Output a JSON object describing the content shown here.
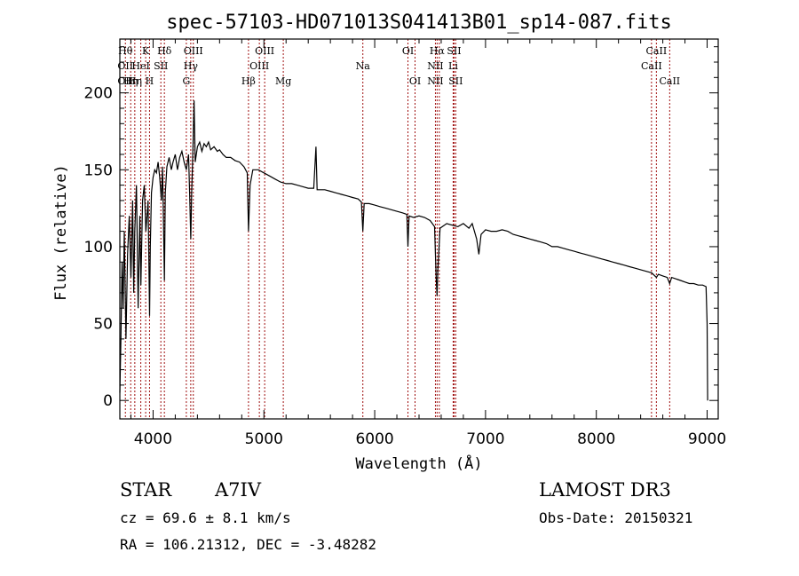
{
  "chart_data": {
    "type": "line",
    "title": "spec-57103-HD071013S041413B01_sp14-087.fits",
    "xlabel": "Wavelength (Å)",
    "ylabel": "Flux (relative)",
    "xlim": [
      3700,
      9100
    ],
    "ylim": [
      -12,
      235
    ],
    "xticks": [
      4000,
      5000,
      6000,
      7000,
      8000,
      9000
    ],
    "yticks": [
      0,
      50,
      100,
      150,
      200
    ],
    "line_color": "#000000",
    "marker_color": "#a01010",
    "series": [
      {
        "name": "spectrum",
        "points": [
          [
            3700,
            5
          ],
          [
            3710,
            40
          ],
          [
            3720,
            90
          ],
          [
            3730,
            60
          ],
          [
            3740,
            110
          ],
          [
            3755,
            40
          ],
          [
            3770,
            95
          ],
          [
            3785,
            120
          ],
          [
            3800,
            80
          ],
          [
            3815,
            130
          ],
          [
            3825,
            70
          ],
          [
            3835,
            110
          ],
          [
            3850,
            140
          ],
          [
            3865,
            60
          ],
          [
            3880,
            120
          ],
          [
            3890,
            75
          ],
          [
            3905,
            130
          ],
          [
            3920,
            140
          ],
          [
            3935,
            110
          ],
          [
            3945,
            120
          ],
          [
            3955,
            130
          ],
          [
            3968,
            55
          ],
          [
            3975,
            100
          ],
          [
            3985,
            135
          ],
          [
            4000,
            145
          ],
          [
            4015,
            150
          ],
          [
            4030,
            148
          ],
          [
            4045,
            155
          ],
          [
            4060,
            145
          ],
          [
            4075,
            130
          ],
          [
            4085,
            152
          ],
          [
            4095,
            110
          ],
          [
            4102,
            78
          ],
          [
            4110,
            135
          ],
          [
            4125,
            152
          ],
          [
            4145,
            158
          ],
          [
            4165,
            150
          ],
          [
            4180,
            155
          ],
          [
            4200,
            160
          ],
          [
            4220,
            150
          ],
          [
            4240,
            158
          ],
          [
            4260,
            162
          ],
          [
            4280,
            155
          ],
          [
            4300,
            150
          ],
          [
            4320,
            160
          ],
          [
            4330,
            135
          ],
          [
            4340,
            105
          ],
          [
            4348,
            135
          ],
          [
            4360,
            165
          ],
          [
            4370,
            195
          ],
          [
            4380,
            155
          ],
          [
            4400,
            165
          ],
          [
            4420,
            168
          ],
          [
            4440,
            162
          ],
          [
            4460,
            167
          ],
          [
            4480,
            165
          ],
          [
            4500,
            168
          ],
          [
            4520,
            163
          ],
          [
            4550,
            165
          ],
          [
            4580,
            162
          ],
          [
            4600,
            163
          ],
          [
            4630,
            160
          ],
          [
            4660,
            158
          ],
          [
            4700,
            158
          ],
          [
            4740,
            156
          ],
          [
            4780,
            155
          ],
          [
            4820,
            152
          ],
          [
            4850,
            148
          ],
          [
            4861,
            110
          ],
          [
            4875,
            140
          ],
          [
            4900,
            150
          ],
          [
            4950,
            150
          ],
          [
            5000,
            148
          ],
          [
            5050,
            146
          ],
          [
            5100,
            144
          ],
          [
            5150,
            142
          ],
          [
            5200,
            141
          ],
          [
            5250,
            141
          ],
          [
            5300,
            140
          ],
          [
            5350,
            139
          ],
          [
            5400,
            138
          ],
          [
            5450,
            138
          ],
          [
            5470,
            165
          ],
          [
            5480,
            137
          ],
          [
            5550,
            137
          ],
          [
            5600,
            136
          ],
          [
            5650,
            135
          ],
          [
            5700,
            134
          ],
          [
            5750,
            133
          ],
          [
            5800,
            132
          ],
          [
            5850,
            131
          ],
          [
            5880,
            129
          ],
          [
            5893,
            110
          ],
          [
            5905,
            128
          ],
          [
            5950,
            128
          ],
          [
            6000,
            127
          ],
          [
            6050,
            126
          ],
          [
            6100,
            125
          ],
          [
            6150,
            124
          ],
          [
            6200,
            123
          ],
          [
            6250,
            122
          ],
          [
            6290,
            121
          ],
          [
            6300,
            100
          ],
          [
            6310,
            120
          ],
          [
            6350,
            119
          ],
          [
            6400,
            120
          ],
          [
            6450,
            119
          ],
          [
            6500,
            117
          ],
          [
            6540,
            113
          ],
          [
            6555,
            80
          ],
          [
            6563,
            68
          ],
          [
            6570,
            85
          ],
          [
            6590,
            112
          ],
          [
            6650,
            115
          ],
          [
            6700,
            114
          ],
          [
            6750,
            113
          ],
          [
            6800,
            115
          ],
          [
            6850,
            112
          ],
          [
            6880,
            115
          ],
          [
            6920,
            105
          ],
          [
            6940,
            95
          ],
          [
            6960,
            108
          ],
          [
            7000,
            111
          ],
          [
            7050,
            110
          ],
          [
            7100,
            110
          ],
          [
            7150,
            111
          ],
          [
            7200,
            110
          ],
          [
            7250,
            108
          ],
          [
            7300,
            107
          ],
          [
            7350,
            106
          ],
          [
            7400,
            105
          ],
          [
            7450,
            104
          ],
          [
            7500,
            103
          ],
          [
            7550,
            102
          ],
          [
            7600,
            100
          ],
          [
            7650,
            100
          ],
          [
            7700,
            99
          ],
          [
            7750,
            98
          ],
          [
            7800,
            97
          ],
          [
            7850,
            96
          ],
          [
            7900,
            95
          ],
          [
            7950,
            94
          ],
          [
            8000,
            93
          ],
          [
            8050,
            92
          ],
          [
            8100,
            91
          ],
          [
            8150,
            90
          ],
          [
            8200,
            89
          ],
          [
            8250,
            88
          ],
          [
            8300,
            87
          ],
          [
            8350,
            86
          ],
          [
            8400,
            85
          ],
          [
            8450,
            84
          ],
          [
            8500,
            83
          ],
          [
            8542,
            80
          ],
          [
            8560,
            82
          ],
          [
            8600,
            81
          ],
          [
            8640,
            80
          ],
          [
            8662,
            76
          ],
          [
            8680,
            80
          ],
          [
            8720,
            79
          ],
          [
            8760,
            78
          ],
          [
            8800,
            77
          ],
          [
            8840,
            76
          ],
          [
            8880,
            76
          ],
          [
            8920,
            75
          ],
          [
            8960,
            75
          ],
          [
            8990,
            74
          ],
          [
            9000,
            50
          ],
          [
            9005,
            0
          ]
        ]
      }
    ],
    "line_markers": [
      {
        "wl": 3750,
        "labels": [
          [
            "Hθ",
            1
          ],
          [
            "OII",
            2
          ],
          [
            "OII",
            3
          ]
        ]
      },
      {
        "wl": 3798,
        "labels": [
          [
            "Hη",
            3
          ]
        ]
      },
      {
        "wl": 3835,
        "labels": [
          [
            "Hη",
            3
          ]
        ]
      },
      {
        "wl": 3889,
        "labels": [
          [
            "HeI",
            2
          ]
        ]
      },
      {
        "wl": 3933,
        "labels": [
          [
            "K",
            1
          ]
        ]
      },
      {
        "wl": 3968,
        "labels": [
          [
            "H",
            3
          ]
        ]
      },
      {
        "wl": 4070,
        "labels": [
          [
            "SII",
            2
          ]
        ]
      },
      {
        "wl": 4102,
        "labels": [
          [
            "Hδ",
            1
          ]
        ]
      },
      {
        "wl": 4300,
        "labels": [
          [
            "G",
            3
          ]
        ]
      },
      {
        "wl": 4340,
        "labels": [
          [
            "Hγ",
            2
          ]
        ]
      },
      {
        "wl": 4363,
        "labels": [
          [
            "OIII",
            1
          ]
        ]
      },
      {
        "wl": 4861,
        "labels": [
          [
            "Hβ",
            3
          ]
        ]
      },
      {
        "wl": 4959,
        "labels": [
          [
            "OIII",
            2
          ]
        ]
      },
      {
        "wl": 5007,
        "labels": [
          [
            "OIII",
            1
          ]
        ]
      },
      {
        "wl": 5175,
        "labels": [
          [
            "Mg",
            3
          ]
        ]
      },
      {
        "wl": 5893,
        "labels": [
          [
            "Na",
            2
          ]
        ]
      },
      {
        "wl": 6300,
        "labels": [
          [
            "OI",
            1
          ]
        ]
      },
      {
        "wl": 6364,
        "labels": [
          [
            "OI",
            3
          ]
        ]
      },
      {
        "wl": 6548,
        "labels": [
          [
            "NII",
            2
          ],
          [
            "NII",
            3
          ]
        ]
      },
      {
        "wl": 6563,
        "labels": [
          [
            "Hα",
            1
          ]
        ]
      },
      {
        "wl": 6583,
        "labels": []
      },
      {
        "wl": 6708,
        "labels": [
          [
            "Li",
            2
          ]
        ]
      },
      {
        "wl": 6716,
        "labels": [
          [
            "SII",
            1
          ]
        ]
      },
      {
        "wl": 6731,
        "labels": [
          [
            "SII",
            3
          ]
        ]
      },
      {
        "wl": 8498,
        "labels": [
          [
            "CaII",
            2
          ]
        ]
      },
      {
        "wl": 8542,
        "labels": [
          [
            "CaII",
            1
          ]
        ]
      },
      {
        "wl": 8662,
        "labels": [
          [
            "CaII",
            3
          ]
        ]
      }
    ]
  },
  "info": {
    "class": "STAR",
    "subclass": "A7IV",
    "survey": "LAMOST DR3",
    "cz": "cz = 69.6 ± 8.1 km/s",
    "obs_date": "Obs-Date: 20150321",
    "radec": "RA = 106.21312, DEC =  -3.48282"
  }
}
